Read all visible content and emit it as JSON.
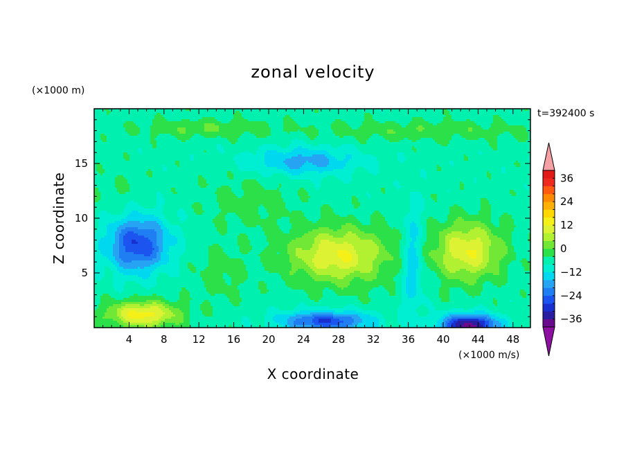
{
  "chart_data": {
    "type": "heatmap",
    "title": "zonal velocity",
    "xlabel": "X coordinate",
    "ylabel": "Z coordinate",
    "x_unit": "(×1000 m/s)",
    "y_unit": "(×1000 m)",
    "time_label": "t=392400 s",
    "xlim": [
      0,
      50
    ],
    "ylim": [
      0,
      20
    ],
    "x_ticks": [
      4,
      8,
      12,
      16,
      20,
      24,
      28,
      32,
      36,
      40,
      44,
      48
    ],
    "y_ticks": [
      5,
      10,
      15
    ],
    "colorbar": {
      "levels": [
        -40,
        -36,
        -32,
        -28,
        -24,
        -20,
        -16,
        -12,
        -8,
        -4,
        0,
        4,
        8,
        12,
        16,
        20,
        24,
        28,
        32,
        36,
        40
      ],
      "colors": [
        "#6a0a8c",
        "#2a1ea0",
        "#1830d0",
        "#1c54f0",
        "#1f7ff2",
        "#27a3f4",
        "#00d8f0",
        "#00eed2",
        "#00f0b0",
        "#2ce04a",
        "#72e836",
        "#b2f032",
        "#dcf232",
        "#f5f018",
        "#ffd800",
        "#ffb000",
        "#ff8a00",
        "#ff5a10",
        "#ee2a1e",
        "#e11a18"
      ],
      "under_color": "#8e10a0",
      "over_color": "#f4a0a4",
      "tick_labels": [
        "36",
        "24",
        "12",
        "0",
        "−12",
        "−24",
        "−36"
      ],
      "tick_values": [
        36,
        24,
        12,
        0,
        -12,
        -24,
        -36
      ]
    },
    "features": [
      {
        "x": 5.6,
        "z": 1.2,
        "sx": 4.0,
        "sz": 1.2,
        "v": 20
      },
      {
        "x": 28.0,
        "z": 6.6,
        "sx": 5.5,
        "sz": 2.5,
        "v": 18
      },
      {
        "x": 42.8,
        "z": 7.0,
        "sx": 3.8,
        "sz": 2.6,
        "v": 18
      },
      {
        "x": 5.0,
        "z": 7.6,
        "sx": 3.5,
        "sz": 2.5,
        "v": -22
      },
      {
        "x": 24.0,
        "z": 15.2,
        "sx": 6.0,
        "sz": 1.3,
        "v": -12
      },
      {
        "x": 26.5,
        "z": 0.6,
        "sx": 5.0,
        "sz": 0.9,
        "v": -22
      },
      {
        "x": 43.0,
        "z": 0.2,
        "sx": 3.2,
        "sz": 1.0,
        "v": -32
      },
      {
        "x": 13.0,
        "z": 18.2,
        "sx": 8.0,
        "sz": 0.8,
        "v": 6
      },
      {
        "x": 38.0,
        "z": 18.0,
        "sx": 12.0,
        "sz": 0.9,
        "v": 5
      },
      {
        "x": 18.0,
        "z": 11.5,
        "sx": 5.0,
        "sz": 2.5,
        "v": 4
      },
      {
        "x": 36.5,
        "z": 6.0,
        "sx": 1.2,
        "sz": 5.0,
        "v": -10
      },
      {
        "x": 14.5,
        "z": 5.0,
        "sx": 3.0,
        "sz": 2.5,
        "v": 4
      },
      {
        "x": 2.5,
        "z": 12.5,
        "sx": 3.0,
        "sz": 2.0,
        "v": 2
      }
    ],
    "background_value": -6
  }
}
